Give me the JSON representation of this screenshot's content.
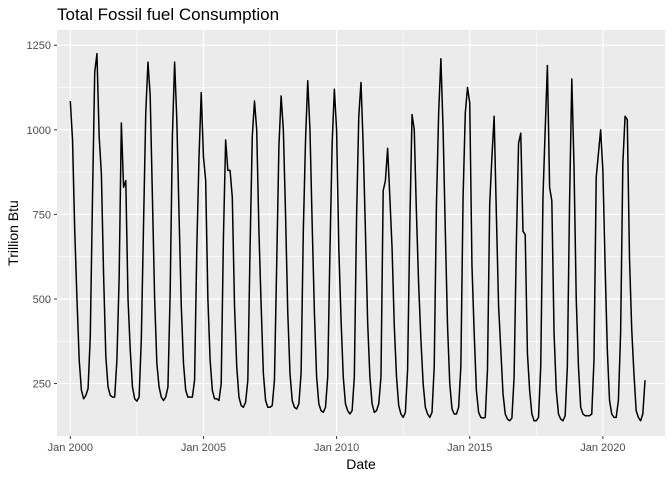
{
  "chart_data": {
    "type": "line",
    "title": "Total Fossil fuel Consumption",
    "xlabel": "Date",
    "ylabel": "Trillion Btu",
    "y_ticks": [
      250,
      500,
      750,
      1000,
      1250
    ],
    "x_ticks": [
      "Jan 2000",
      "Jan 2005",
      "Jan 2010",
      "Jan 2015",
      "Jan 2020"
    ],
    "x_tick_years": [
      2000,
      2005,
      2010,
      2015,
      2020
    ],
    "xlim": [
      "1999-07",
      "2022-05"
    ],
    "ylim": [
      95,
      1295
    ],
    "x_start": "2000-01",
    "frequency": "monthly",
    "grid": true,
    "colors": {
      "panel_background": "#ebebeb",
      "grid": "#ffffff",
      "line": "#000000"
    },
    "series": [
      {
        "values": [
          1085,
          970,
          700,
          500,
          320,
          230,
          205,
          215,
          235,
          390,
          800,
          1170,
          1225,
          980,
          870,
          570,
          330,
          240,
          215,
          210,
          210,
          320,
          560,
          1020,
          830,
          850,
          500,
          350,
          240,
          205,
          198,
          210,
          380,
          720,
          1050,
          1200,
          1100,
          800,
          500,
          310,
          240,
          210,
          200,
          210,
          240,
          520,
          980,
          1200,
          1030,
          750,
          480,
          310,
          230,
          210,
          210,
          210,
          260,
          650,
          920,
          1110,
          920,
          850,
          500,
          320,
          230,
          205,
          205,
          200,
          250,
          680,
          970,
          880,
          880,
          800,
          480,
          300,
          210,
          185,
          180,
          195,
          260,
          650,
          980,
          1085,
          1000,
          700,
          480,
          280,
          200,
          180,
          180,
          185,
          260,
          600,
          950,
          1100,
          1000,
          750,
          460,
          280,
          200,
          180,
          175,
          190,
          280,
          700,
          970,
          1145,
          1000,
          720,
          460,
          270,
          190,
          170,
          165,
          180,
          270,
          640,
          960,
          1120,
          1000,
          650,
          440,
          270,
          190,
          170,
          160,
          170,
          270,
          740,
          1040,
          1140,
          950,
          700,
          430,
          270,
          190,
          165,
          170,
          190,
          270,
          820,
          850,
          945,
          800,
          650,
          420,
          270,
          185,
          160,
          150,
          165,
          290,
          720,
          1045,
          1000,
          750,
          540,
          380,
          250,
          180,
          160,
          150,
          165,
          300,
          780,
          1050,
          1210,
          1000,
          700,
          420,
          250,
          175,
          160,
          160,
          180,
          300,
          800,
          1050,
          1125,
          1080,
          600,
          400,
          230,
          165,
          150,
          148,
          150,
          290,
          780,
          920,
          1040,
          750,
          480,
          350,
          220,
          160,
          145,
          140,
          148,
          270,
          660,
          960,
          990,
          700,
          690,
          340,
          230,
          160,
          140,
          140,
          150,
          300,
          800,
          1000,
          1190,
          830,
          790,
          400,
          230,
          160,
          145,
          140,
          155,
          300,
          790,
          1150,
          890,
          500,
          300,
          180,
          160,
          155,
          155,
          155,
          160,
          320,
          860,
          930,
          1000,
          880,
          600,
          350,
          200,
          160,
          150,
          150,
          200,
          400,
          900,
          1040,
          1030,
          620,
          410,
          280,
          170,
          150,
          140,
          160,
          260
        ]
      }
    ]
  }
}
